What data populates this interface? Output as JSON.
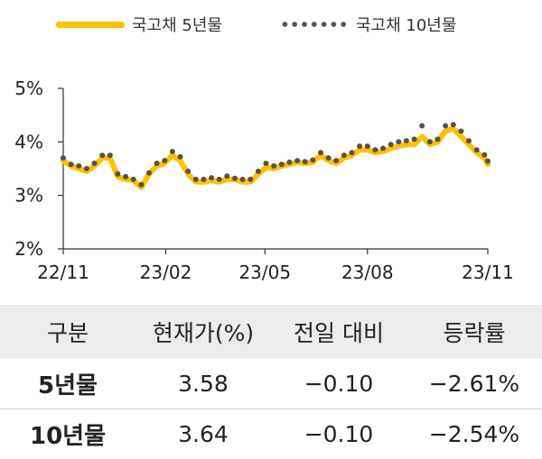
{
  "legend": {
    "series1": "국고채 5년물",
    "series2": "국고채 10년물"
  },
  "colors": {
    "series1": "#FFC000",
    "series2": "#5a5046",
    "axis": "#333333",
    "header_bg": "#ececec"
  },
  "chart_data": {
    "type": "line",
    "y_ticks": [
      "5%",
      "4%",
      "3%",
      "2%"
    ],
    "y_tick_values": [
      5,
      4,
      3,
      2
    ],
    "ylim": [
      2,
      5
    ],
    "x_ticks": [
      "22/11",
      "23/02",
      "23/05",
      "23/08",
      "23/11"
    ],
    "grid": false,
    "legend_position": "top",
    "series": [
      {
        "name": "국고채 5년물",
        "style": "solid-line",
        "x": [
          "22/11/01",
          "22/11/08",
          "22/11/15",
          "22/11/22",
          "22/11/29",
          "22/12/06",
          "22/12/13",
          "22/12/20",
          "22/12/27",
          "23/01/03",
          "23/01/10",
          "23/01/17",
          "23/01/24",
          "23/01/31",
          "23/02/07",
          "23/02/14",
          "23/02/21",
          "23/02/28",
          "23/03/07",
          "23/03/14",
          "23/03/21",
          "23/03/28",
          "23/04/04",
          "23/04/11",
          "23/04/18",
          "23/04/25",
          "23/05/02",
          "23/05/09",
          "23/05/16",
          "23/05/23",
          "23/05/30",
          "23/06/06",
          "23/06/13",
          "23/06/20",
          "23/06/27",
          "23/07/04",
          "23/07/11",
          "23/07/18",
          "23/07/25",
          "23/08/01",
          "23/08/08",
          "23/08/15",
          "23/08/22",
          "23/08/29",
          "23/09/05",
          "23/09/12",
          "23/09/19",
          "23/09/26",
          "23/10/03",
          "23/10/10",
          "23/10/17",
          "23/10/24",
          "23/10/31",
          "23/11/07",
          "23/11/14",
          "23/11/17"
        ],
        "values": [
          3.65,
          3.55,
          3.5,
          3.45,
          3.55,
          3.7,
          3.7,
          3.35,
          3.3,
          3.28,
          3.15,
          3.4,
          3.55,
          3.6,
          3.75,
          3.65,
          3.4,
          3.25,
          3.25,
          3.28,
          3.25,
          3.3,
          3.3,
          3.25,
          3.25,
          3.4,
          3.52,
          3.5,
          3.55,
          3.58,
          3.62,
          3.6,
          3.62,
          3.75,
          3.65,
          3.6,
          3.7,
          3.75,
          3.85,
          3.85,
          3.8,
          3.82,
          3.88,
          3.92,
          3.95,
          3.95,
          4.1,
          3.95,
          4.0,
          4.2,
          4.25,
          4.1,
          3.95,
          3.8,
          3.7,
          3.58
        ]
      },
      {
        "name": "국고채 10년물",
        "style": "dotted-line",
        "x": [
          "22/11/01",
          "22/11/08",
          "22/11/15",
          "22/11/22",
          "22/11/29",
          "22/12/06",
          "22/12/13",
          "22/12/20",
          "22/12/27",
          "23/01/03",
          "23/01/10",
          "23/01/17",
          "23/01/24",
          "23/01/31",
          "23/02/07",
          "23/02/14",
          "23/02/21",
          "23/02/28",
          "23/03/07",
          "23/03/14",
          "23/03/21",
          "23/03/28",
          "23/04/04",
          "23/04/11",
          "23/04/18",
          "23/04/25",
          "23/05/02",
          "23/05/09",
          "23/05/16",
          "23/05/23",
          "23/05/30",
          "23/06/06",
          "23/06/13",
          "23/06/20",
          "23/06/27",
          "23/07/04",
          "23/07/11",
          "23/07/18",
          "23/07/25",
          "23/08/01",
          "23/08/08",
          "23/08/15",
          "23/08/22",
          "23/08/29",
          "23/09/05",
          "23/09/12",
          "23/09/19",
          "23/09/26",
          "23/10/03",
          "23/10/10",
          "23/10/17",
          "23/10/24",
          "23/10/31",
          "23/11/07",
          "23/11/14",
          "23/11/17"
        ],
        "values": [
          3.7,
          3.58,
          3.55,
          3.5,
          3.6,
          3.75,
          3.75,
          3.4,
          3.35,
          3.3,
          3.2,
          3.42,
          3.6,
          3.65,
          3.82,
          3.72,
          3.45,
          3.3,
          3.3,
          3.33,
          3.3,
          3.36,
          3.32,
          3.3,
          3.3,
          3.45,
          3.6,
          3.55,
          3.58,
          3.62,
          3.65,
          3.63,
          3.66,
          3.8,
          3.7,
          3.65,
          3.75,
          3.8,
          3.92,
          3.92,
          3.85,
          3.88,
          3.95,
          4.0,
          4.02,
          4.05,
          4.3,
          4.0,
          4.05,
          4.3,
          4.32,
          4.2,
          4.02,
          3.85,
          3.76,
          3.64
        ]
      }
    ]
  },
  "table": {
    "headers": [
      "구분",
      "현재가(%)",
      "전일 대비",
      "등락률"
    ],
    "rows": [
      [
        "5년물",
        "3.58",
        "−0.10",
        "−2.61%"
      ],
      [
        "10년물",
        "3.64",
        "−0.10",
        "−2.54%"
      ]
    ]
  }
}
